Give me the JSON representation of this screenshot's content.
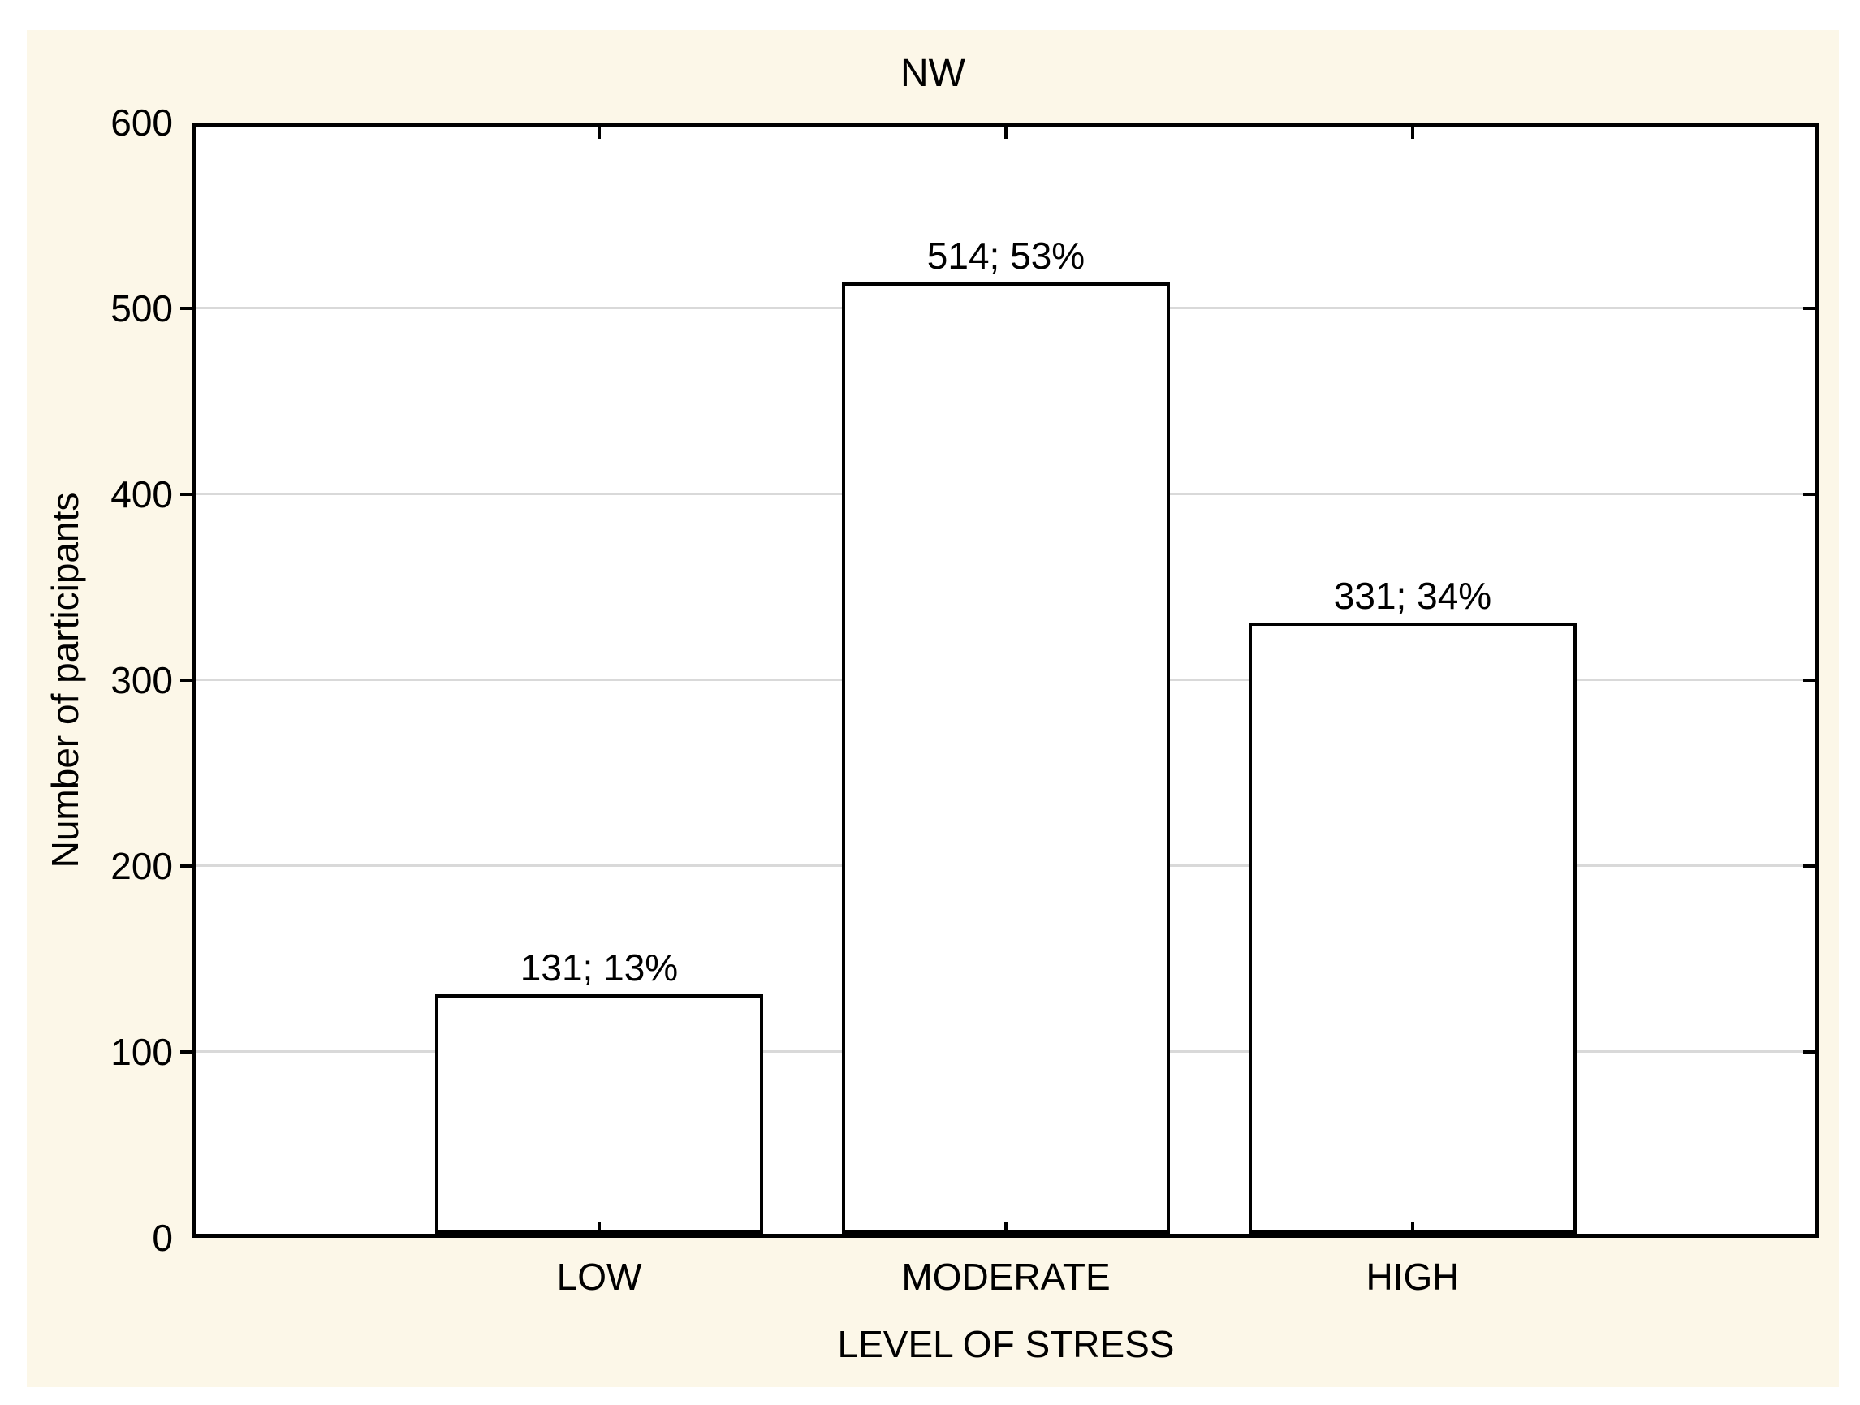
{
  "chart_data": {
    "type": "bar",
    "title": "NW",
    "xlabel": "LEVEL OF STRESS",
    "ylabel": "Number of participants",
    "categories": [
      "LOW",
      "MODERATE",
      "HIGH"
    ],
    "values": [
      131,
      514,
      331
    ],
    "percentages": [
      13,
      53,
      34
    ],
    "bar_labels": [
      "131; 13%",
      "514; 53%",
      "331; 34%"
    ],
    "ylim": [
      0,
      600
    ],
    "yticks": [
      0,
      100,
      200,
      300,
      400,
      500,
      600
    ],
    "grid": "horizontal",
    "legend": "none",
    "colors": {
      "canvas_background": "#FCF7E8",
      "plot_background": "#FFFFFF",
      "bar_fill": "#FFFFFF",
      "bar_border": "#000000",
      "gridline": "#D9D9D9",
      "axis": "#000000",
      "text": "#000000"
    }
  }
}
